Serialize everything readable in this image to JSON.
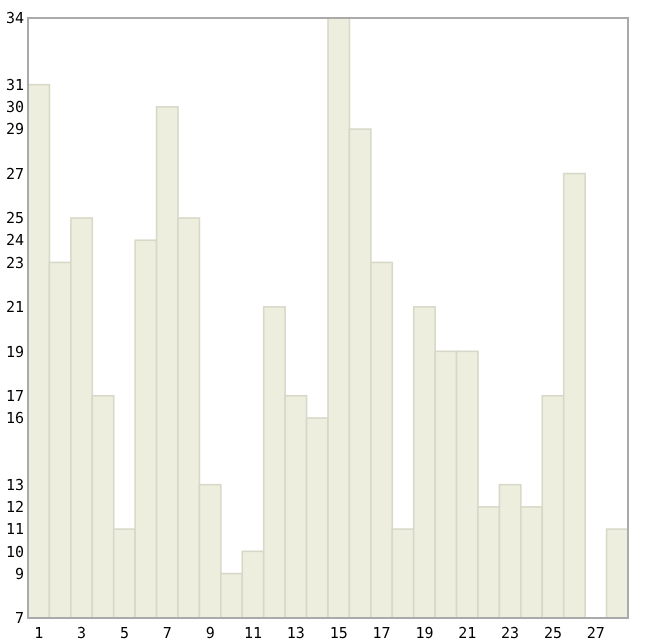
{
  "chart_data": {
    "type": "bar",
    "categories": [
      "1",
      null,
      "3",
      null,
      "5",
      null,
      "7",
      null,
      "9",
      null,
      "11",
      null,
      "13",
      null,
      "15",
      null,
      "17",
      null,
      "19",
      null,
      "21",
      null,
      "23",
      null,
      "25",
      null,
      "27",
      null
    ],
    "values": [
      31,
      23,
      25,
      17,
      11,
      24,
      30,
      25,
      13,
      9,
      10,
      21,
      17,
      16,
      34,
      29,
      23,
      11,
      21,
      19,
      19,
      12,
      13,
      12,
      17,
      27,
      7,
      11
    ],
    "color": "#eeeedf",
    "ylim": [
      7,
      34
    ],
    "yticks": [
      7,
      9,
      10,
      11,
      12,
      13,
      16,
      17,
      19,
      21,
      23,
      24,
      25,
      27,
      29,
      30,
      31,
      34
    ],
    "grid": false
  }
}
